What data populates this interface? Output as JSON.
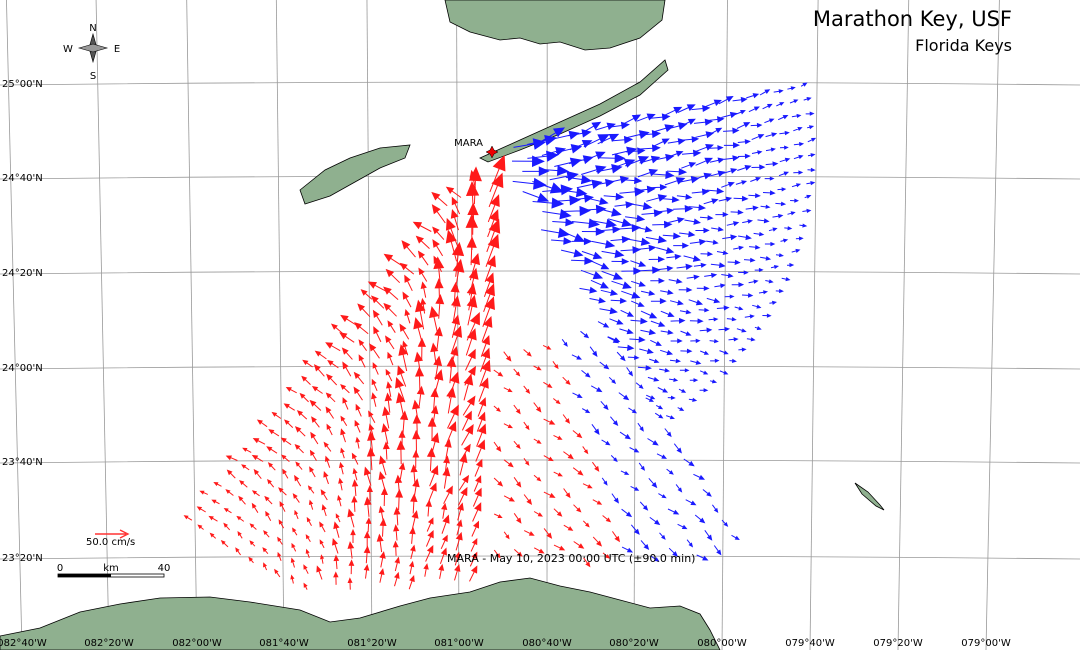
{
  "title": "Marathon Key, USF",
  "subtitle": "Florida Keys",
  "station": "MARA",
  "compass": {
    "n": "N",
    "s": "S",
    "e": "E",
    "w": "W"
  },
  "lat_labels": [
    "25°00'N",
    "24°40'N",
    "24°20'N",
    "24°00'N",
    "23°40'N",
    "23°20'N"
  ],
  "lon_labels": [
    "082°40'W",
    "082°20'W",
    "082°00'W",
    "081°40'W",
    "081°20'W",
    "081°00'W",
    "080°40'W",
    "080°20'W",
    "080°00'W",
    "079°40'W",
    "079°20'W",
    "079°00'W"
  ],
  "scale": {
    "speed": "50.0 cm/s",
    "start": "0",
    "unit": "km",
    "end": "40"
  },
  "timestamp": "MARA - May 10, 2023 00:00 UTC (±90.0 min)"
}
